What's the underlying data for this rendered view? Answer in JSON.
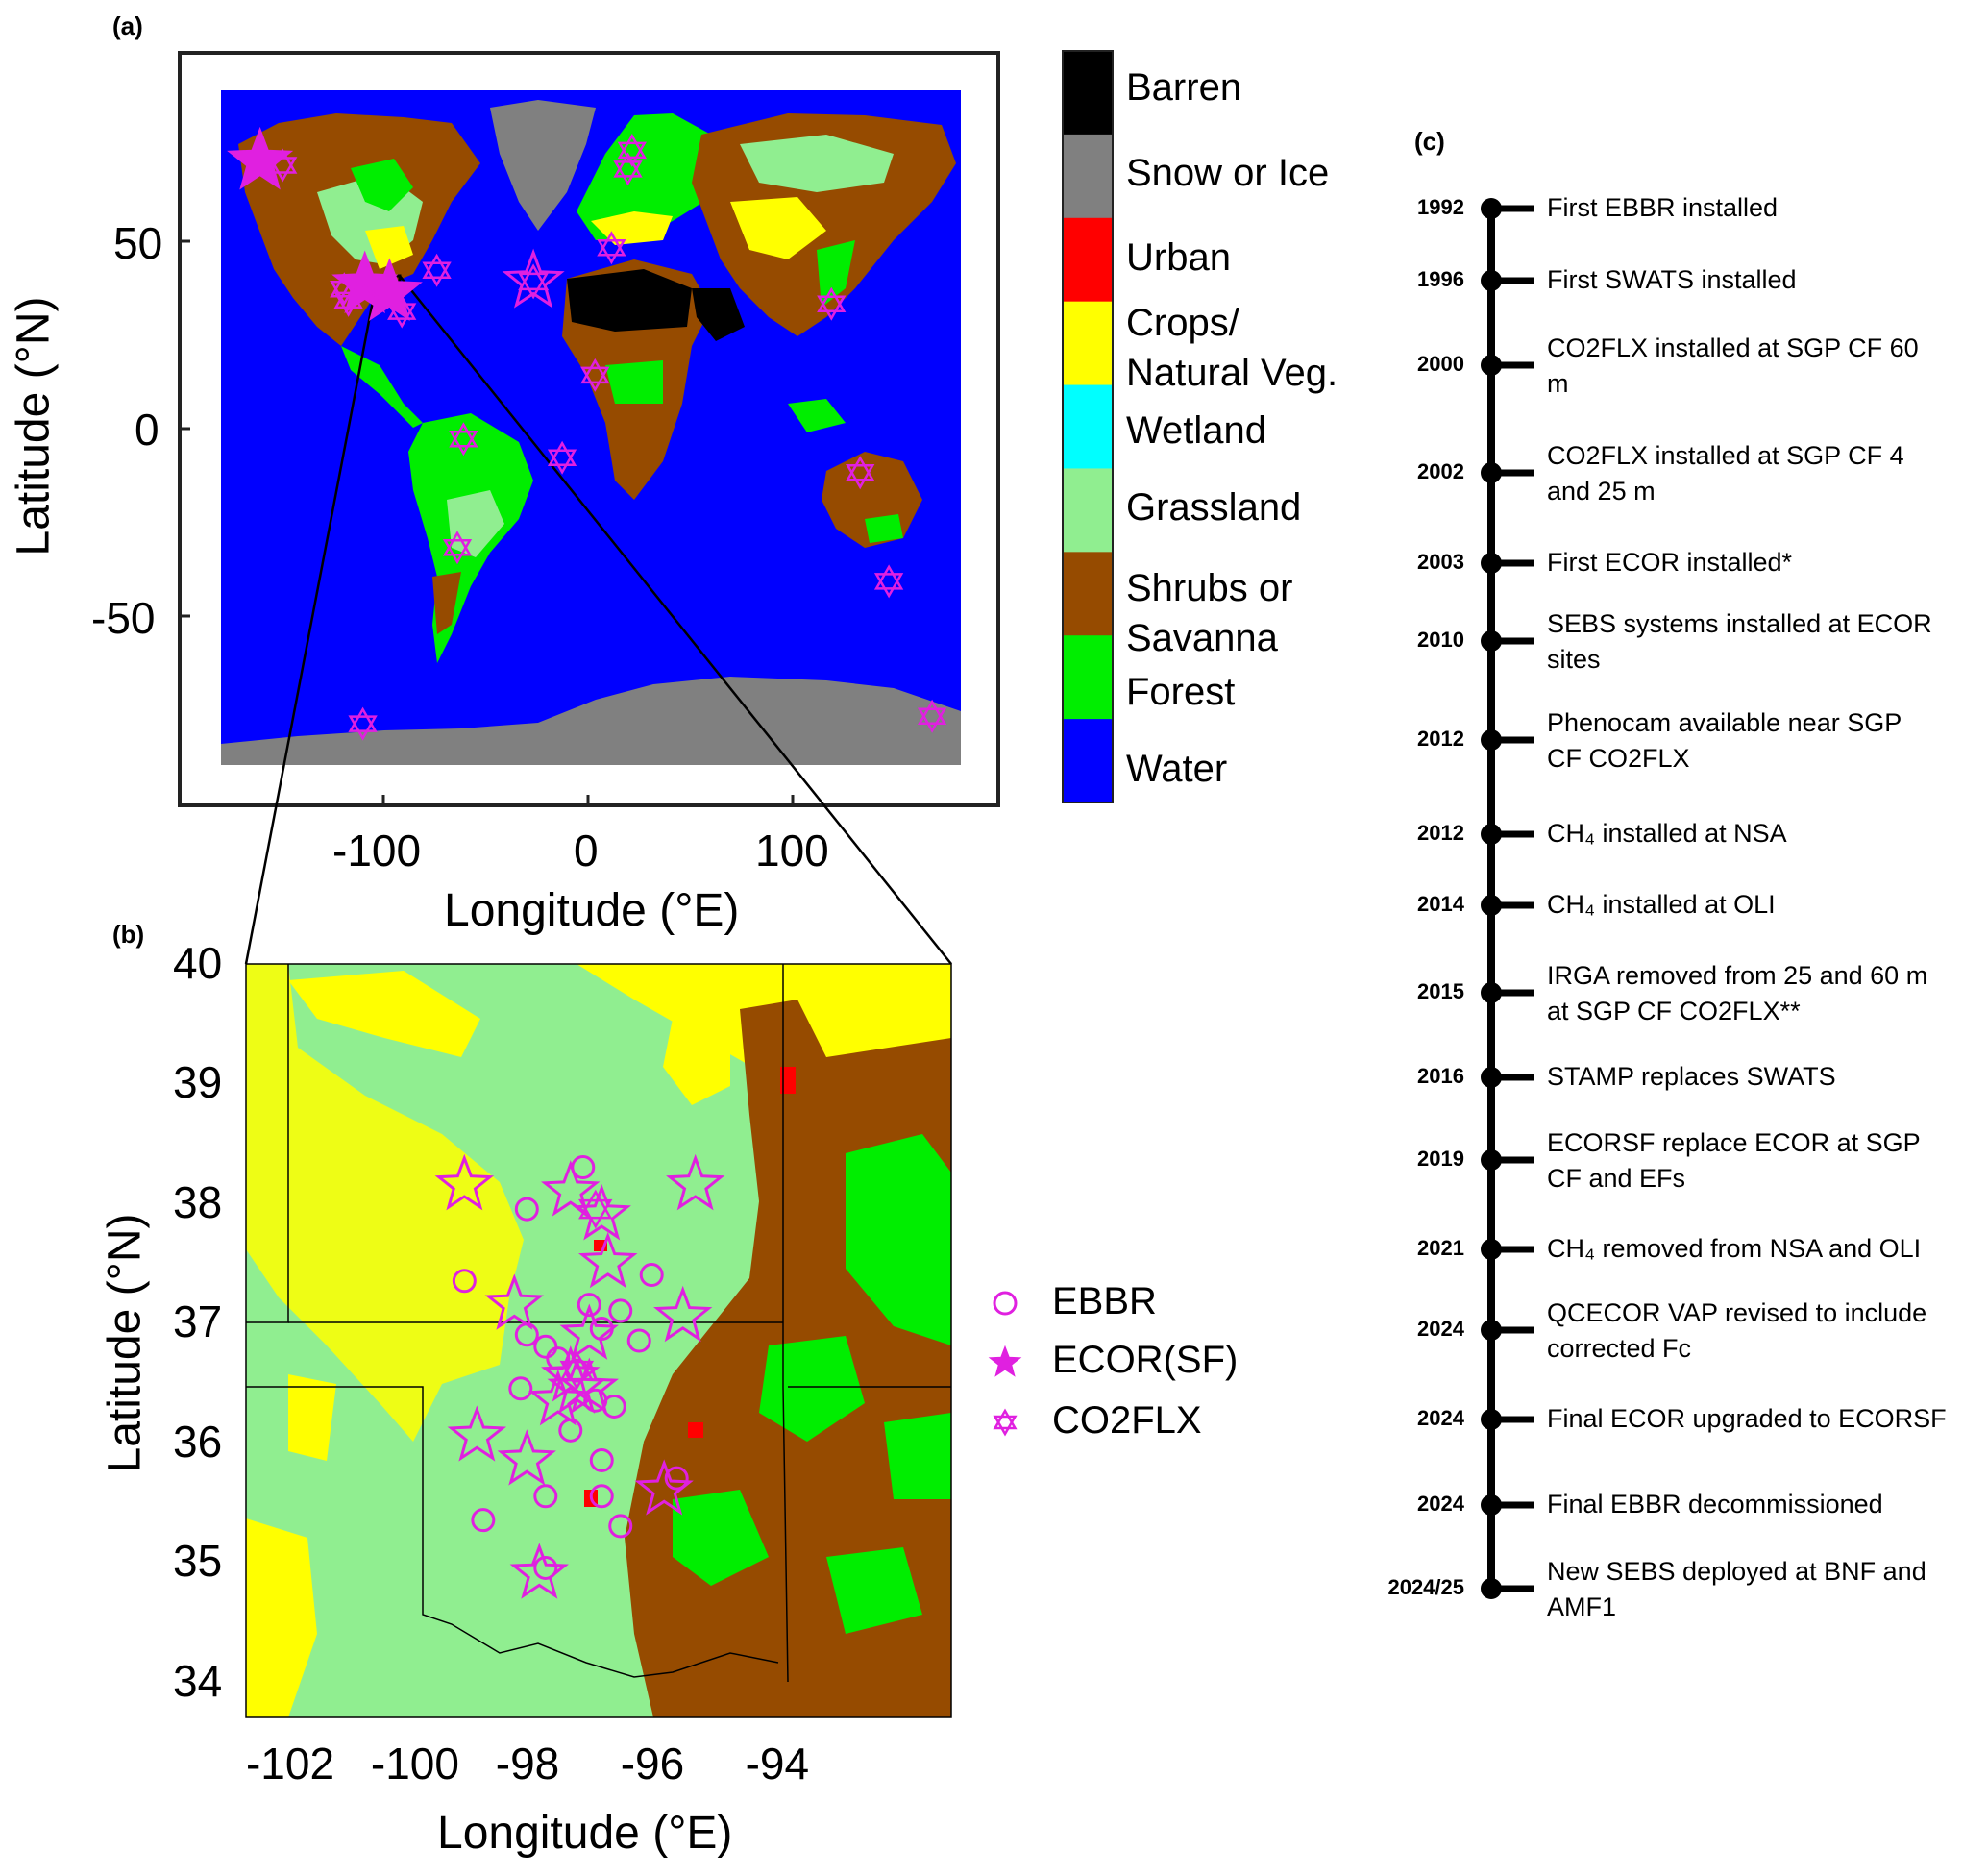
{
  "panels": {
    "a": "(a)",
    "b": "(b)",
    "c": "(c)"
  },
  "map_a": {
    "xlabel": "Longitude (°E)",
    "ylabel": "Latitude (°N)",
    "xticks": [
      "-100",
      "0",
      "100"
    ],
    "yticks": [
      "50",
      "0",
      "-50"
    ]
  },
  "colorbar": {
    "classes": [
      {
        "label": "Barren",
        "color": "#000000"
      },
      {
        "label": "Snow or Ice",
        "color": "#808080"
      },
      {
        "label": "Urban",
        "color": "#ff0000"
      },
      {
        "label": "Crops/ Natural Veg.",
        "color": "#ffff00"
      },
      {
        "label": "Wetland",
        "color": "#00ffff"
      },
      {
        "label": "Grassland",
        "color": "#90ee90"
      },
      {
        "label": "Shrubs or Savanna",
        "color": "#964b00"
      },
      {
        "label": "Forest",
        "color": "#00ee00"
      },
      {
        "label": "Water",
        "color": "#0000ff"
      }
    ]
  },
  "map_b": {
    "xlabel": "Longitude (°E)",
    "ylabel": "Latitude (°N)",
    "xticks": [
      "-102",
      "-100",
      "-98",
      "-96",
      "-94"
    ],
    "yticks": [
      "40",
      "39",
      "38",
      "37",
      "36",
      "35",
      "34"
    ],
    "legend": [
      "EBBR",
      "ECOR(SF)",
      "CO2FLX"
    ]
  },
  "marker_color": "#e020e0",
  "chart_data": {
    "type": "scatter",
    "map_a_sites": [
      {
        "lon": -161,
        "lat": 71,
        "kind": "ECOR",
        "big": true
      },
      {
        "lon": -150,
        "lat": 70,
        "kind": "CO2FLX"
      },
      {
        "lon": -120,
        "lat": 37,
        "kind": "CO2FLX"
      },
      {
        "lon": -118,
        "lat": 34,
        "kind": "CO2FLX"
      },
      {
        "lon": -110,
        "lat": 38,
        "kind": "ECOR",
        "big": true
      },
      {
        "lon": -98,
        "lat": 36,
        "kind": "ECOR",
        "big": true
      },
      {
        "lon": -92,
        "lat": 31,
        "kind": "CO2FLX"
      },
      {
        "lon": -75,
        "lat": 42,
        "kind": "CO2FLX"
      },
      {
        "lon": -62,
        "lat": -3,
        "kind": "CO2FLX"
      },
      {
        "lon": -65,
        "lat": -32,
        "kind": "CO2FLX"
      },
      {
        "lon": -28,
        "lat": 39,
        "kind": "CO2FLX",
        "big": true
      },
      {
        "lon": -14,
        "lat": -8,
        "kind": "CO2FLX"
      },
      {
        "lon": 2,
        "lat": 14,
        "kind": "CO2FLX"
      },
      {
        "lon": 10,
        "lat": 48,
        "kind": "CO2FLX"
      },
      {
        "lon": 18,
        "lat": 69,
        "kind": "CO2FLX"
      },
      {
        "lon": 20,
        "lat": 74,
        "kind": "CO2FLX"
      },
      {
        "lon": 117,
        "lat": 33,
        "kind": "CO2FLX"
      },
      {
        "lon": 131,
        "lat": -12,
        "kind": "CO2FLX"
      },
      {
        "lon": 145,
        "lat": -41,
        "kind": "CO2FLX"
      },
      {
        "lon": -111,
        "lat": -79,
        "kind": "CO2FLX"
      },
      {
        "lon": 166,
        "lat": -77,
        "kind": "CO2FLX"
      }
    ],
    "map_b_ebbr": [
      [
        -97.4,
        38.3
      ],
      [
        -98.3,
        37.95
      ],
      [
        -99.3,
        37.35
      ],
      [
        -96.3,
        37.4
      ],
      [
        -97.3,
        37.15
      ],
      [
        -96.8,
        37.1
      ],
      [
        -97.1,
        36.95
      ],
      [
        -96.5,
        36.85
      ],
      [
        -98.0,
        36.8
      ],
      [
        -98.4,
        36.45
      ],
      [
        -97.2,
        36.35
      ],
      [
        -96.9,
        36.3
      ],
      [
        -97.6,
        36.1
      ],
      [
        -97.1,
        35.85
      ],
      [
        -97.1,
        35.55
      ],
      [
        -98.0,
        35.55
      ],
      [
        -99.0,
        35.35
      ],
      [
        -96.8,
        35.3
      ],
      [
        -95.9,
        35.7
      ],
      [
        -98.0,
        34.95
      ],
      [
        -98.3,
        36.9
      ],
      [
        -97.5,
        36.6
      ],
      [
        -97.8,
        36.7
      ]
    ],
    "map_b_ecor": [
      [
        -99.3,
        38.15
      ],
      [
        -97.6,
        38.1
      ],
      [
        -97.1,
        37.9
      ],
      [
        -95.6,
        38.15
      ],
      [
        -97.0,
        37.5
      ],
      [
        -98.5,
        37.15
      ],
      [
        -97.3,
        36.9
      ],
      [
        -95.8,
        37.05
      ],
      [
        -97.6,
        36.55
      ],
      [
        -97.5,
        36.45
      ],
      [
        -97.8,
        36.35
      ],
      [
        -97.3,
        36.45
      ],
      [
        -99.1,
        36.05
      ],
      [
        -98.3,
        35.85
      ],
      [
        -96.1,
        35.6
      ],
      [
        -98.1,
        34.9
      ]
    ],
    "map_b_co2flx": [
      [
        -97.5,
        36.6
      ],
      [
        -97.2,
        37.95
      ]
    ]
  },
  "timeline": [
    {
      "year": "1992",
      "text": "First EBBR installed"
    },
    {
      "year": "1996",
      "text": "First SWATS installed"
    },
    {
      "year": "2000",
      "text": "CO2FLX installed at SGP CF 60 m"
    },
    {
      "year": "2002",
      "text": "CO2FLX installed at SGP CF 4 and 25 m"
    },
    {
      "year": "2003",
      "text": "First ECOR installed*"
    },
    {
      "year": "2010",
      "text": "SEBS systems installed at ECOR sites"
    },
    {
      "year": "2012",
      "text": "Phenocam available near SGP CF CO2FLX"
    },
    {
      "year": "2012",
      "text": "CH₄ installed at NSA"
    },
    {
      "year": "2014",
      "text": "CH₄ installed at OLI"
    },
    {
      "year": "2015",
      "text": "IRGA removed from 25 and 60 m at SGP CF CO2FLX**"
    },
    {
      "year": "2016",
      "text": "STAMP replaces SWATS"
    },
    {
      "year": "2019",
      "text": "ECORSF replace ECOR at SGP CF and EFs"
    },
    {
      "year": "2021",
      "text": "CH₄ removed from NSA and OLI"
    },
    {
      "year": "2024",
      "text": "QCECOR VAP revised to include corrected Fc"
    },
    {
      "year": "2024",
      "text": "Final ECOR upgraded to ECORSF"
    },
    {
      "year": "2024",
      "text": "Final EBBR decommissioned"
    },
    {
      "year": "2024/25",
      "text": "New SEBS deployed at BNF and AMF1"
    }
  ]
}
